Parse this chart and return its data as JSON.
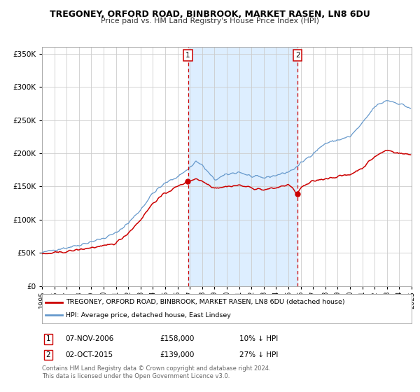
{
  "title": "TREGONEY, ORFORD ROAD, BINBROOK, MARKET RASEN, LN8 6DU",
  "subtitle": "Price paid vs. HM Land Registry's House Price Index (HPI)",
  "legend_line1": "TREGONEY, ORFORD ROAD, BINBROOK, MARKET RASEN, LN8 6DU (detached house)",
  "legend_line2": "HPI: Average price, detached house, East Lindsey",
  "sale1_date": "07-NOV-2006",
  "sale1_price": 158000,
  "sale1_pct": "10% ↓ HPI",
  "sale2_date": "02-OCT-2015",
  "sale2_price": 139000,
  "sale2_pct": "27% ↓ HPI",
  "footer1": "Contains HM Land Registry data © Crown copyright and database right 2024.",
  "footer2": "This data is licensed under the Open Government Licence v3.0.",
  "red_color": "#cc0000",
  "blue_color": "#6699cc",
  "shade_color": "#ddeeff",
  "background_color": "#ffffff",
  "grid_color": "#cccccc",
  "ylim": [
    0,
    360000
  ],
  "yticks": [
    0,
    50000,
    100000,
    150000,
    200000,
    250000,
    300000,
    350000
  ],
  "sale1_x": 2006.85,
  "sale2_x": 2015.75
}
